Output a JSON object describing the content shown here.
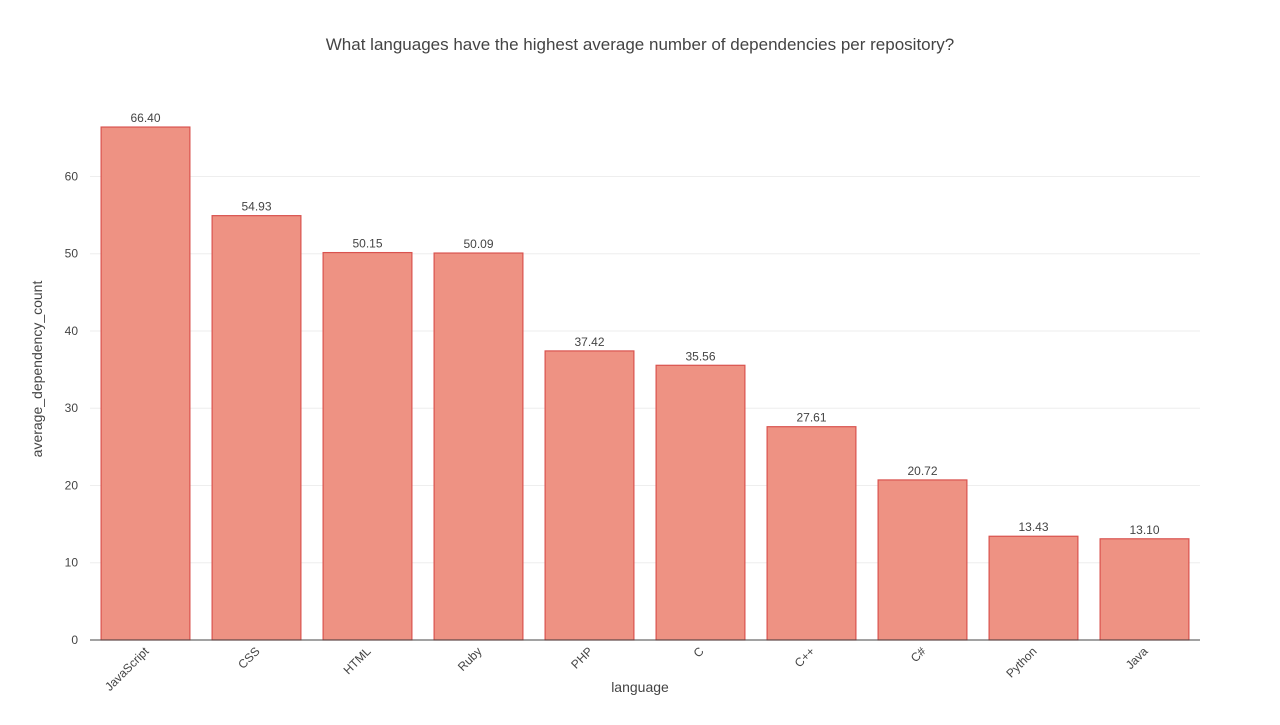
{
  "chart_data": {
    "type": "bar",
    "title": "What languages have the highest average number of dependencies per repository?",
    "xlabel": "language",
    "ylabel": "average_dependency_count",
    "categories": [
      "JavaScript",
      "CSS",
      "HTML",
      "Ruby",
      "PHP",
      "C",
      "C++",
      "C#",
      "Python",
      "Java"
    ],
    "values": [
      66.4,
      54.93,
      50.15,
      50.09,
      37.42,
      35.56,
      27.61,
      20.72,
      13.43,
      13.1
    ],
    "value_labels": [
      "66.40",
      "54.93",
      "50.15",
      "50.09",
      "37.42",
      "35.56",
      "27.61",
      "20.72",
      "13.43",
      "13.10"
    ],
    "y_ticks": [
      0,
      10,
      20,
      30,
      40,
      50,
      60
    ],
    "ylim": [
      0,
      69.9
    ],
    "grid": true,
    "legend": "none",
    "bar_color": "#ee9283",
    "bar_edge_color": "#d9534f"
  }
}
